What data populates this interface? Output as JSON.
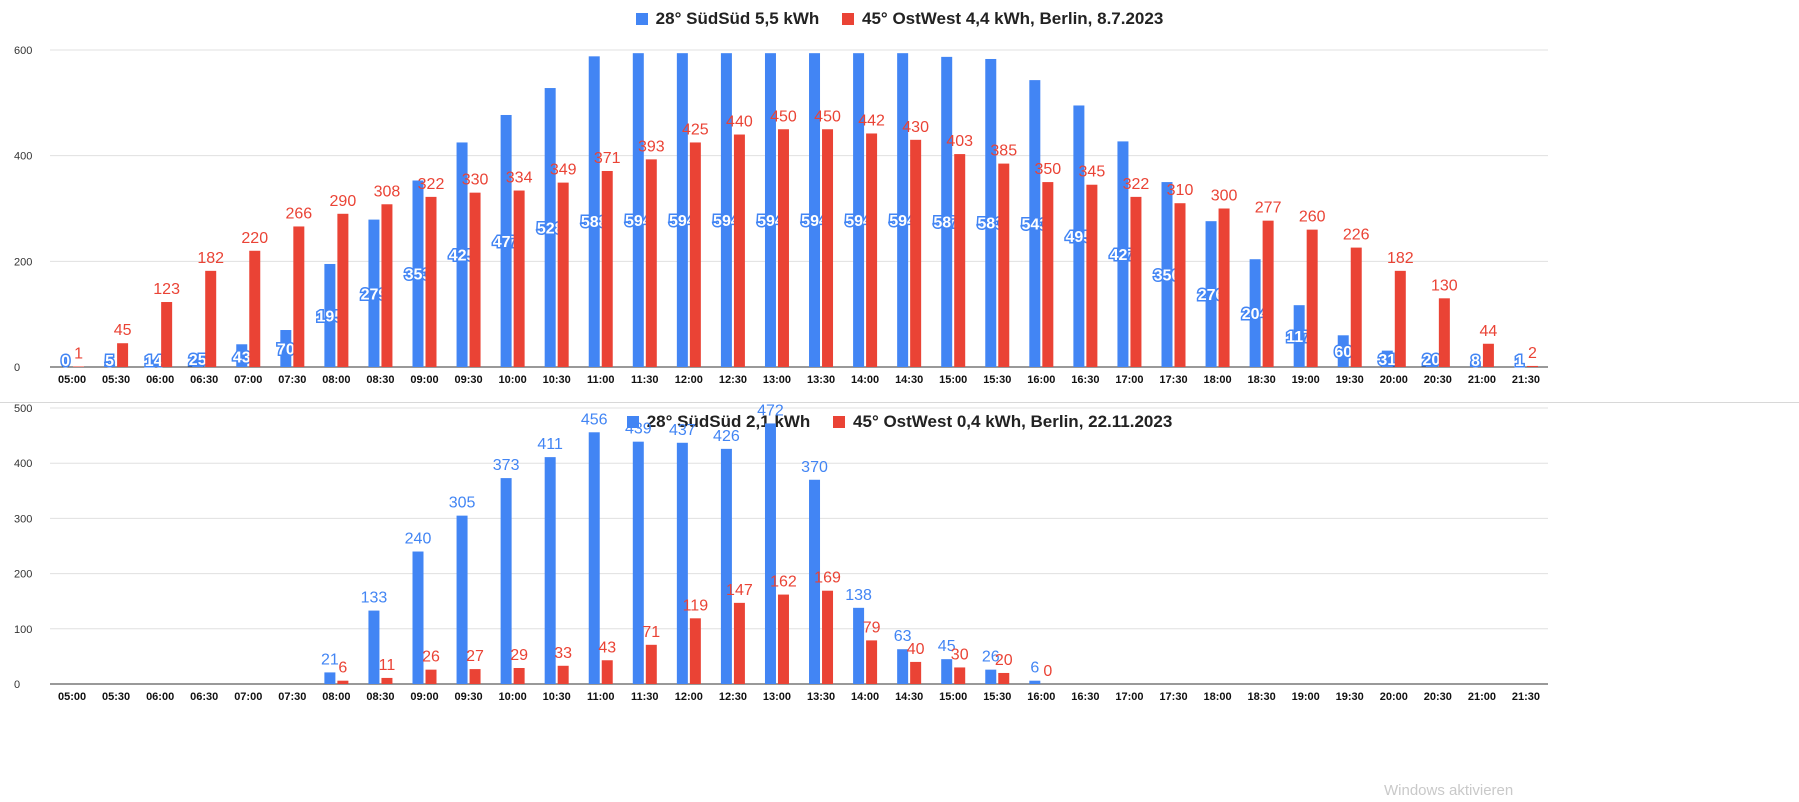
{
  "colors": {
    "blue": "#4285f4",
    "red": "#ea4335",
    "grid": "#e0e0e0"
  },
  "watermark": "Windows aktivieren",
  "chart_data": [
    {
      "type": "bar",
      "legend": [
        {
          "name": "28° SüdSüd 5,5 kWh",
          "color": "#4285f4"
        },
        {
          "name": "45° OstWest 4,4 kWh, Berlin,  8.7.2023",
          "color": "#ea4335"
        }
      ],
      "legend_position": "top",
      "grid": true,
      "ylim": [
        0,
        600
      ],
      "yticks": [
        0,
        200,
        400,
        600
      ],
      "categories": [
        "05:00",
        "05:30",
        "06:00",
        "06:30",
        "07:00",
        "07:30",
        "08:00",
        "08:30",
        "09:00",
        "09:30",
        "10:00",
        "10:30",
        "11:00",
        "11:30",
        "12:00",
        "12:30",
        "13:00",
        "13:30",
        "14:00",
        "14:30",
        "15:00",
        "15:30",
        "16:00",
        "16:30",
        "17:00",
        "17:30",
        "18:00",
        "18:30",
        "19:00",
        "19:30",
        "20:00",
        "20:30",
        "21:00",
        "21:30"
      ],
      "series": [
        {
          "name": "28° SüdSüd 5,5 kWh",
          "color": "#4285f4",
          "values": [
            0,
            5,
            14,
            25,
            43,
            70,
            195,
            279,
            353,
            425,
            477,
            528,
            588,
            594,
            594,
            594,
            594,
            594,
            594,
            594,
            587,
            583,
            543,
            495,
            427,
            350,
            276,
            204,
            117,
            60,
            31,
            20,
            8,
            1
          ]
        },
        {
          "name": "45° OstWest 4,4 kWh, Berlin,  8.7.2023",
          "color": "#ea4335",
          "values": [
            1,
            45,
            123,
            182,
            220,
            266,
            290,
            308,
            322,
            330,
            334,
            349,
            371,
            393,
            425,
            440,
            450,
            450,
            442,
            430,
            403,
            385,
            350,
            345,
            322,
            310,
            300,
            277,
            260,
            226,
            182,
            130,
            44,
            2
          ]
        }
      ]
    },
    {
      "type": "bar",
      "legend": [
        {
          "name": "28° SüdSüd 2,1 kWh",
          "color": "#4285f4"
        },
        {
          "name": "45° OstWest 0,4 kWh, Berlin,  22.11.2023",
          "color": "#ea4335"
        }
      ],
      "legend_position": "top",
      "grid": true,
      "ylim": [
        0,
        500
      ],
      "yticks": [
        0,
        100,
        200,
        300,
        400,
        500
      ],
      "categories": [
        "05:00",
        "05:30",
        "06:00",
        "06:30",
        "07:00",
        "07:30",
        "08:00",
        "08:30",
        "09:00",
        "09:30",
        "10:00",
        "10:30",
        "11:00",
        "11:30",
        "12:00",
        "12:30",
        "13:00",
        "13:30",
        "14:00",
        "14:30",
        "15:00",
        "15:30",
        "16:00",
        "16:30",
        "17:00",
        "17:30",
        "18:00",
        "18:30",
        "19:00",
        "19:30",
        "20:00",
        "20:30",
        "21:00",
        "21:30"
      ],
      "series": [
        {
          "name": "28° SüdSüd 2,1 kWh",
          "color": "#4285f4",
          "values": [
            null,
            null,
            null,
            null,
            null,
            null,
            21,
            133,
            240,
            305,
            373,
            411,
            456,
            439,
            437,
            426,
            472,
            370,
            138,
            63,
            45,
            26,
            6,
            null,
            null,
            null,
            null,
            null,
            null,
            null,
            null,
            null,
            null,
            null
          ]
        },
        {
          "name": "45° OstWest 0,4 kWh, Berlin,  22.11.2023",
          "color": "#ea4335",
          "values": [
            null,
            null,
            null,
            null,
            null,
            null,
            6,
            11,
            26,
            27,
            29,
            33,
            43,
            71,
            119,
            147,
            162,
            169,
            79,
            40,
            30,
            20,
            0,
            null,
            null,
            null,
            null,
            null,
            null,
            null,
            null,
            null,
            null,
            null
          ]
        }
      ]
    }
  ]
}
